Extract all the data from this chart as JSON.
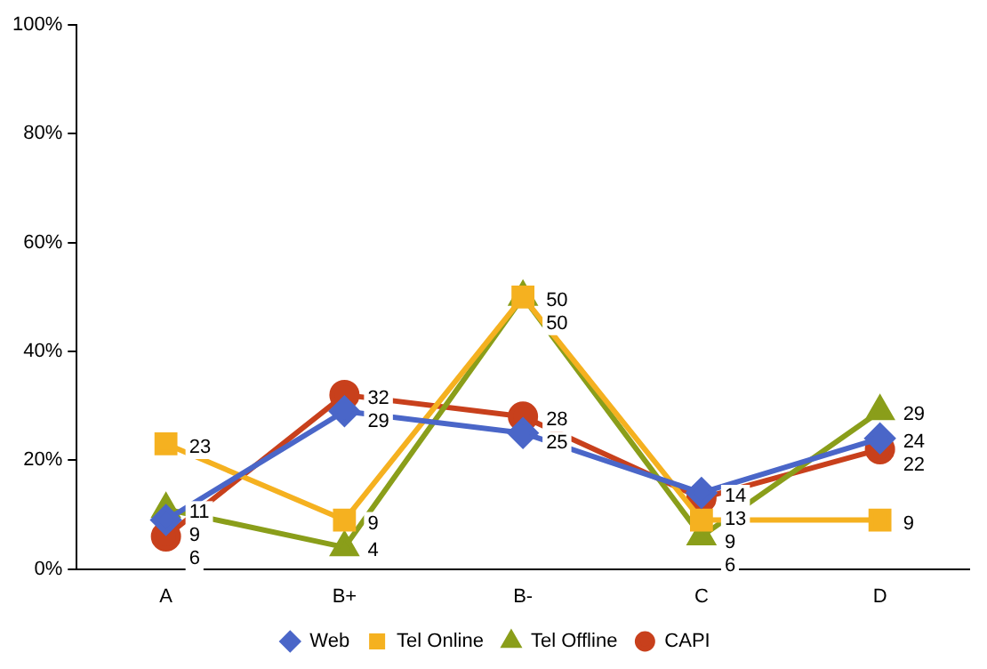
{
  "chart_data": {
    "type": "line",
    "categories": [
      "A",
      "B+",
      "B-",
      "C",
      "D"
    ],
    "series": [
      {
        "name": "Web",
        "color": "#4a66c8",
        "marker": "diamond",
        "values": [
          9,
          29,
          25,
          14,
          24
        ]
      },
      {
        "name": "Tel Online",
        "color": "#f5b120",
        "marker": "square",
        "values": [
          23,
          9,
          50,
          9,
          9
        ]
      },
      {
        "name": "Tel Offline",
        "color": "#8a9e1a",
        "marker": "triangle",
        "values": [
          11,
          4,
          50,
          6,
          29
        ]
      },
      {
        "name": "CAPI",
        "color": "#c8401c",
        "marker": "circle",
        "values": [
          6,
          32,
          28,
          13,
          22
        ]
      }
    ],
    "ylim": [
      0,
      100
    ],
    "yticks": [
      {
        "value": 0,
        "label": "0%"
      },
      {
        "value": 20,
        "label": "20%"
      },
      {
        "value": 40,
        "label": "40%"
      },
      {
        "value": 60,
        "label": "60%"
      },
      {
        "value": 80,
        "label": "80%"
      },
      {
        "value": 100,
        "label": "100%"
      }
    ],
    "grid": false,
    "legend": "bottom",
    "data_labels": true
  }
}
